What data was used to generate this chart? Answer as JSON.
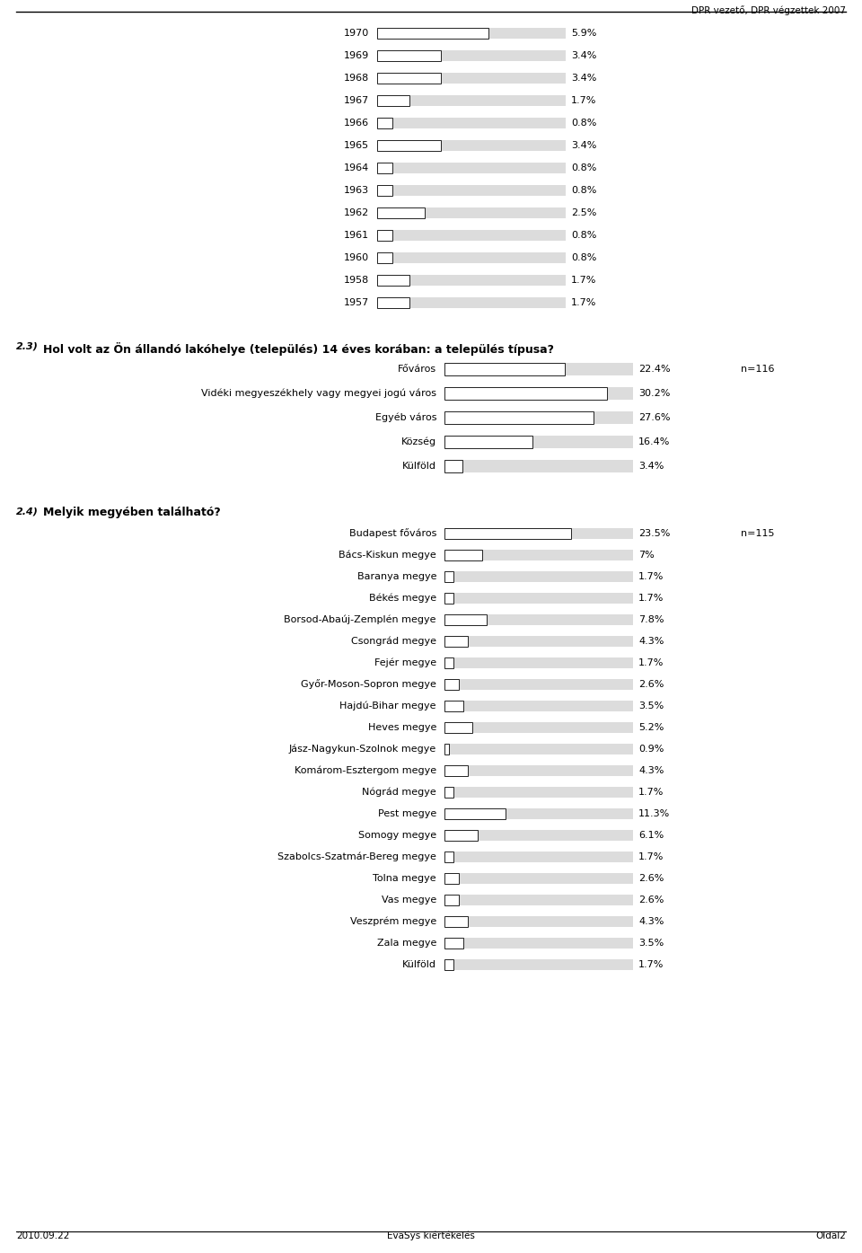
{
  "header_text": "DPR vezető, DPR végzettek 2007",
  "footer_left": "2010.09.22",
  "footer_center": "EvaSys kiértékelés",
  "footer_right": "Oldal2",
  "section1_years": [
    "1970",
    "1969",
    "1968",
    "1967",
    "1966",
    "1965",
    "1964",
    "1963",
    "1962",
    "1961",
    "1960",
    "1958",
    "1957"
  ],
  "section1_values": [
    5.9,
    3.4,
    3.4,
    1.7,
    0.8,
    3.4,
    0.8,
    0.8,
    2.5,
    0.8,
    0.8,
    1.7,
    1.7
  ],
  "section1_pct": [
    "5.9%",
    "3.4%",
    "3.4%",
    "1.7%",
    "0.8%",
    "3.4%",
    "0.8%",
    "0.8%",
    "2.5%",
    "0.8%",
    "0.8%",
    "1.7%",
    "1.7%"
  ],
  "section1_max": 10.0,
  "section2_label": "2.3)",
  "section2_title": "Hol volt az Ön állandó lakóhelye (település) 14 éves korában: a település típusa?",
  "section2_n": "n=116",
  "section2_categories": [
    "Főváros",
    "Vidéki megyeszékhely vagy megyei jogú város",
    "Egyéb város",
    "Község",
    "Külföld"
  ],
  "section2_values": [
    22.4,
    30.2,
    27.6,
    16.4,
    3.4
  ],
  "section2_pct": [
    "22.4%",
    "30.2%",
    "27.6%",
    "16.4%",
    "3.4%"
  ],
  "section2_max": 35.0,
  "section3_label": "2.4)",
  "section3_title": "Melyik megyében található?",
  "section3_n": "n=115",
  "section3_categories": [
    "Budapest főváros",
    "Bács-Kiskun megye",
    "Baranya megye",
    "Békés megye",
    "Borsod-Abaúj-Zemplén megye",
    "Csongrád megye",
    "Fejér megye",
    "Győr-Moson-Sopron megye",
    "Hajdú-Bihar megye",
    "Heves megye",
    "Jász-Nagykun-Szolnok megye",
    "Komárom-Esztergom megye",
    "Nógrád megye",
    "Pest megye",
    "Somogy megye",
    "Szabolcs-Szatmár-Bereg megye",
    "Tolna megye",
    "Vas megye",
    "Veszprém megye",
    "Zala megye",
    "Külföld"
  ],
  "section3_values": [
    23.5,
    7.0,
    1.7,
    1.7,
    7.8,
    4.3,
    1.7,
    2.6,
    3.5,
    5.2,
    0.9,
    4.3,
    1.7,
    11.3,
    6.1,
    1.7,
    2.6,
    2.6,
    4.3,
    3.5,
    1.7
  ],
  "section3_pct": [
    "23.5%",
    "7%",
    "1.7%",
    "1.7%",
    "7.8%",
    "4.3%",
    "1.7%",
    "2.6%",
    "3.5%",
    "5.2%",
    "0.9%",
    "4.3%",
    "1.7%",
    "11.3%",
    "6.1%",
    "1.7%",
    "2.6%",
    "2.6%",
    "4.3%",
    "3.5%",
    "1.7%"
  ],
  "section3_max": 35.0,
  "bar_bg_color": "#dcdcdc",
  "bar_fg_color": "#ffffff",
  "bar_border_color": "#222222"
}
